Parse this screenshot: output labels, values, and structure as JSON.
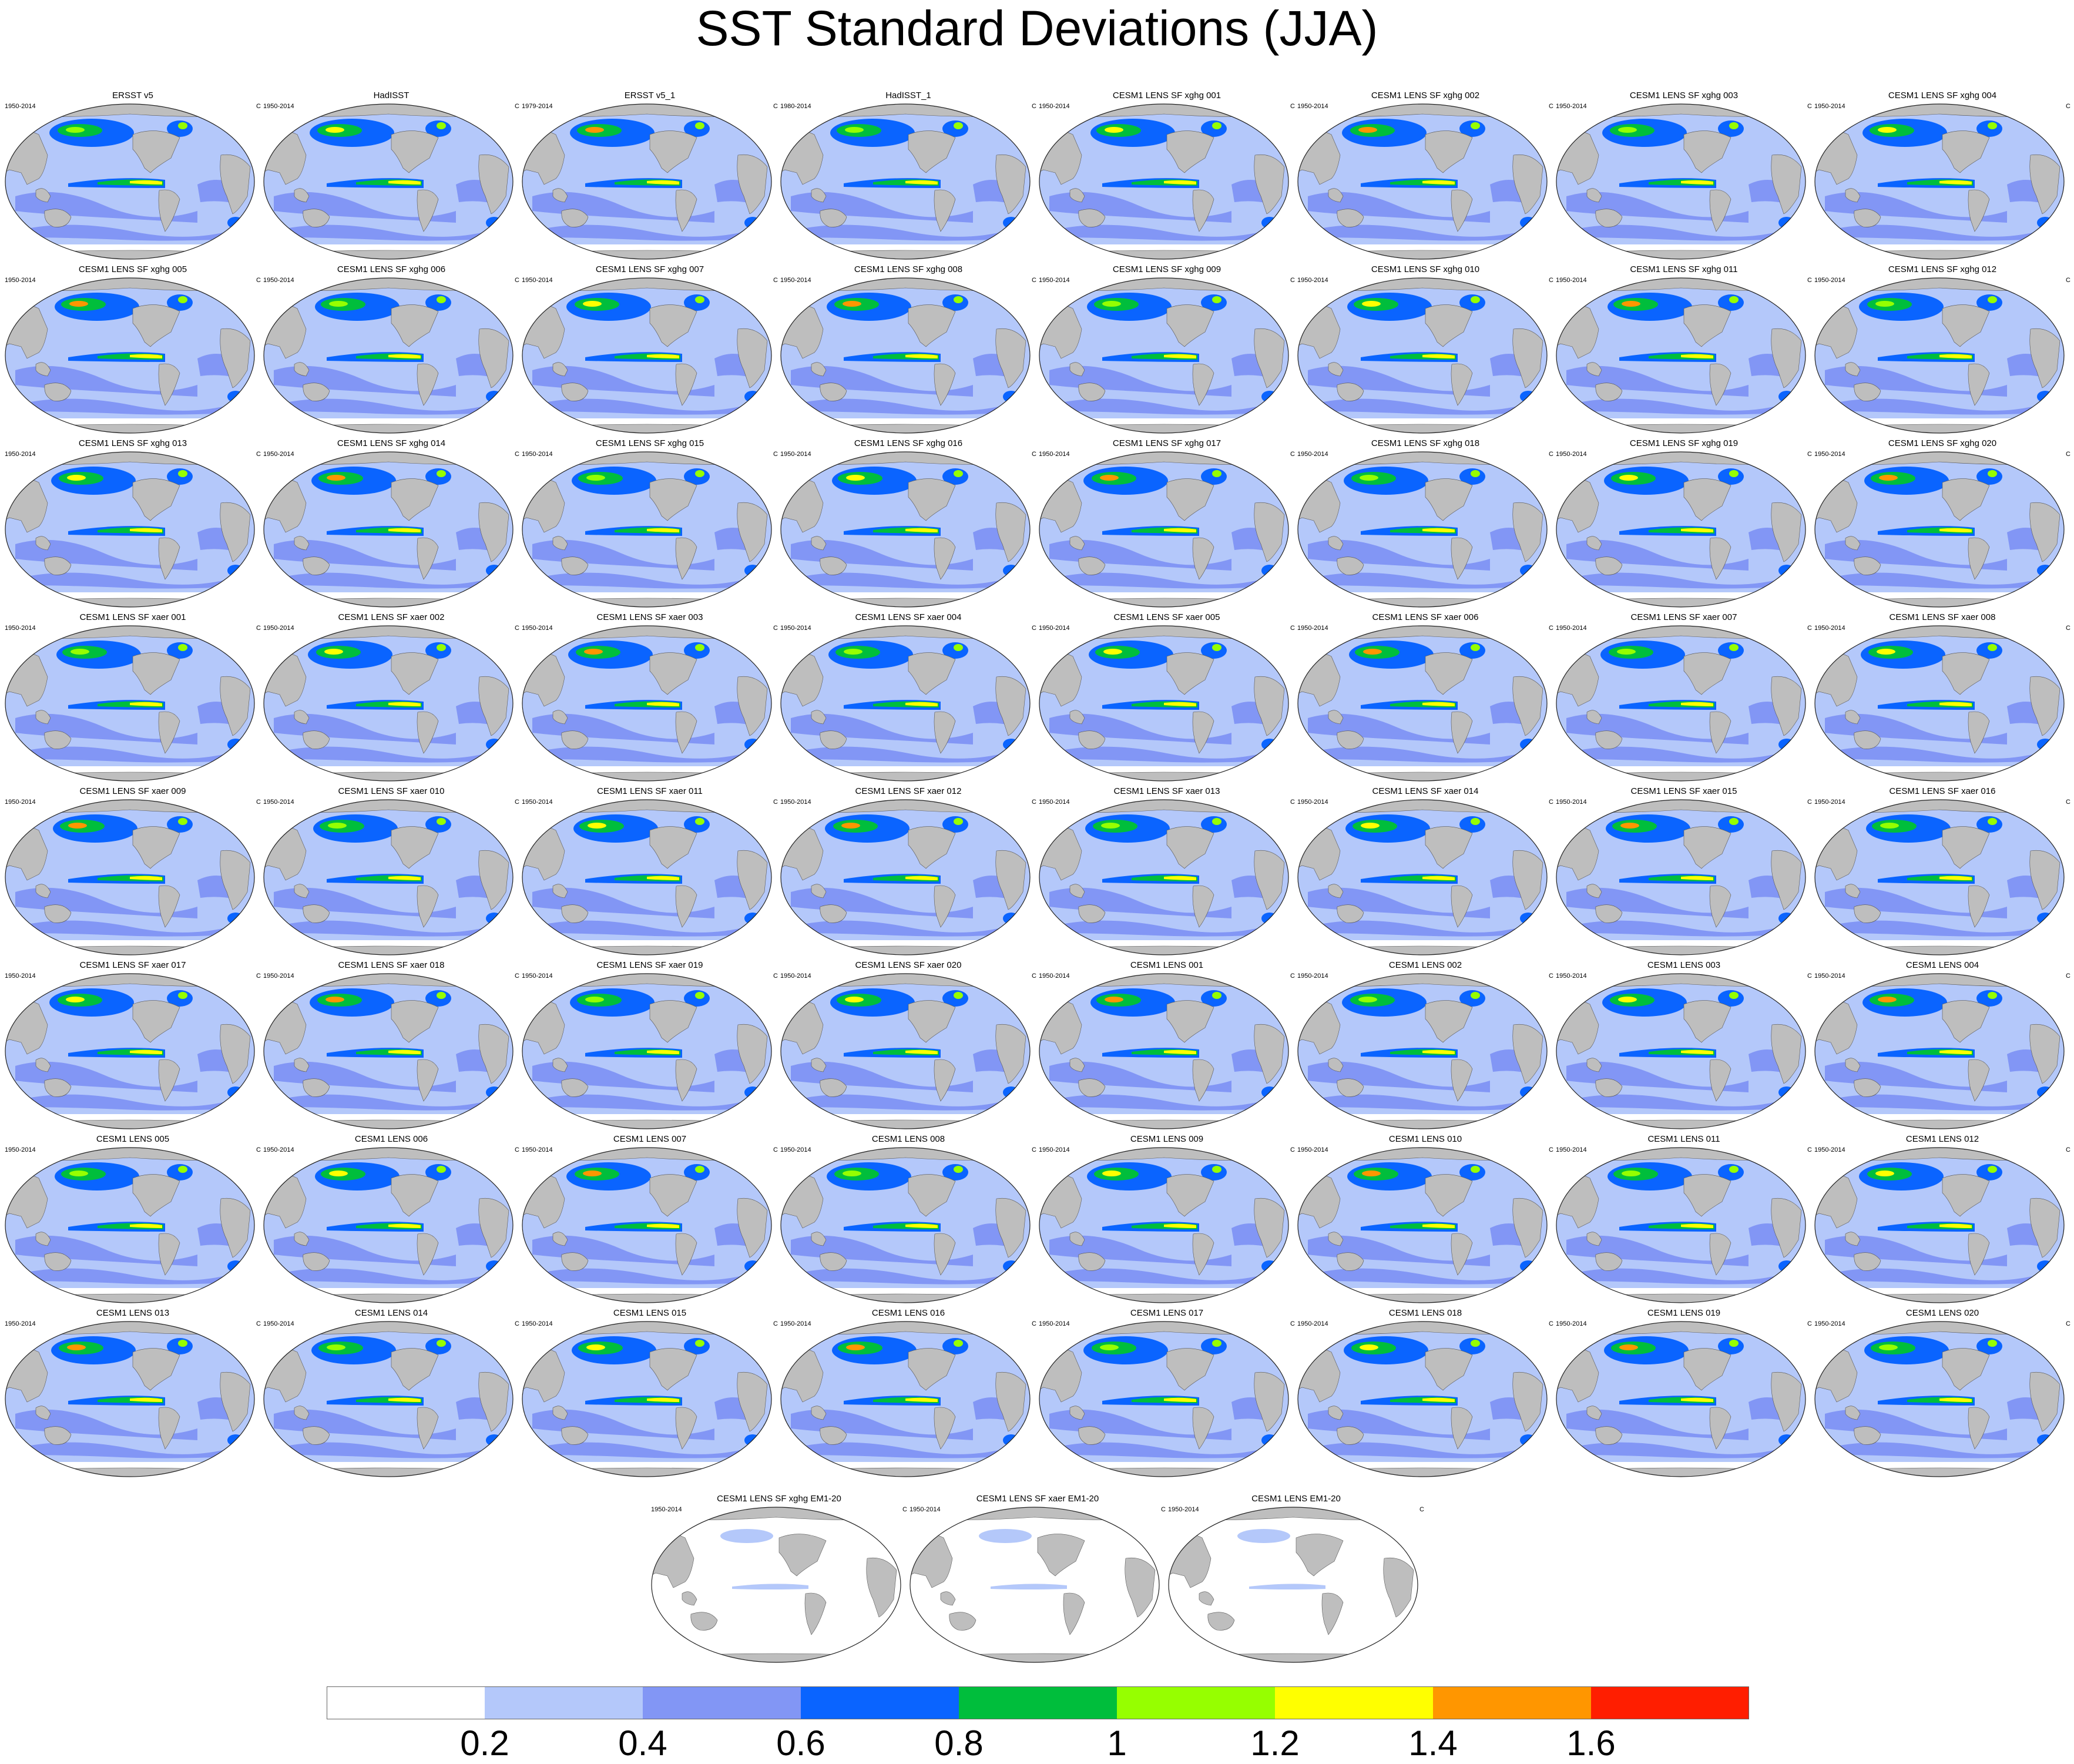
{
  "title": "SST Standard Deviations (JJA)",
  "panels": [
    {
      "title": "ERSST v5",
      "years": "1950-2014",
      "unit": "C"
    },
    {
      "title": "HadISST",
      "years": "1950-2014",
      "unit": "C"
    },
    {
      "title": "ERSST v5_1",
      "years": "1979-2014",
      "unit": "C"
    },
    {
      "title": "HadISST_1",
      "years": "1980-2014",
      "unit": "C"
    },
    {
      "title": "CESM1 LENS SF xghg 001",
      "years": "1950-2014",
      "unit": "C"
    },
    {
      "title": "CESM1 LENS SF xghg 002",
      "years": "1950-2014",
      "unit": "C"
    },
    {
      "title": "CESM1 LENS SF xghg 003",
      "years": "1950-2014",
      "unit": "C"
    },
    {
      "title": "CESM1 LENS SF xghg 004",
      "years": "1950-2014",
      "unit": "C"
    },
    {
      "title": "CESM1 LENS SF xghg 005",
      "years": "1950-2014",
      "unit": "C"
    },
    {
      "title": "CESM1 LENS SF xghg 006",
      "years": "1950-2014",
      "unit": "C"
    },
    {
      "title": "CESM1 LENS SF xghg 007",
      "years": "1950-2014",
      "unit": "C"
    },
    {
      "title": "CESM1 LENS SF xghg 008",
      "years": "1950-2014",
      "unit": "C"
    },
    {
      "title": "CESM1 LENS SF xghg 009",
      "years": "1950-2014",
      "unit": "C"
    },
    {
      "title": "CESM1 LENS SF xghg 010",
      "years": "1950-2014",
      "unit": "C"
    },
    {
      "title": "CESM1 LENS SF xghg 011",
      "years": "1950-2014",
      "unit": "C"
    },
    {
      "title": "CESM1 LENS SF xghg 012",
      "years": "1950-2014",
      "unit": "C"
    },
    {
      "title": "CESM1 LENS SF xghg 013",
      "years": "1950-2014",
      "unit": "C"
    },
    {
      "title": "CESM1 LENS SF xghg 014",
      "years": "1950-2014",
      "unit": "C"
    },
    {
      "title": "CESM1 LENS SF xghg 015",
      "years": "1950-2014",
      "unit": "C"
    },
    {
      "title": "CESM1 LENS SF xghg 016",
      "years": "1950-2014",
      "unit": "C"
    },
    {
      "title": "CESM1 LENS SF xghg 017",
      "years": "1950-2014",
      "unit": "C"
    },
    {
      "title": "CESM1 LENS SF xghg 018",
      "years": "1950-2014",
      "unit": "C"
    },
    {
      "title": "CESM1 LENS SF xghg 019",
      "years": "1950-2014",
      "unit": "C"
    },
    {
      "title": "CESM1 LENS SF xghg 020",
      "years": "1950-2014",
      "unit": "C"
    },
    {
      "title": "CESM1 LENS SF xaer 001",
      "years": "1950-2014",
      "unit": "C"
    },
    {
      "title": "CESM1 LENS SF xaer 002",
      "years": "1950-2014",
      "unit": "C"
    },
    {
      "title": "CESM1 LENS SF xaer 003",
      "years": "1950-2014",
      "unit": "C"
    },
    {
      "title": "CESM1 LENS SF xaer 004",
      "years": "1950-2014",
      "unit": "C"
    },
    {
      "title": "CESM1 LENS SF xaer 005",
      "years": "1950-2014",
      "unit": "C"
    },
    {
      "title": "CESM1 LENS SF xaer 006",
      "years": "1950-2014",
      "unit": "C"
    },
    {
      "title": "CESM1 LENS SF xaer 007",
      "years": "1950-2014",
      "unit": "C"
    },
    {
      "title": "CESM1 LENS SF xaer 008",
      "years": "1950-2014",
      "unit": "C"
    },
    {
      "title": "CESM1 LENS SF xaer 009",
      "years": "1950-2014",
      "unit": "C"
    },
    {
      "title": "CESM1 LENS SF xaer 010",
      "years": "1950-2014",
      "unit": "C"
    },
    {
      "title": "CESM1 LENS SF xaer 011",
      "years": "1950-2014",
      "unit": "C"
    },
    {
      "title": "CESM1 LENS SF xaer 012",
      "years": "1950-2014",
      "unit": "C"
    },
    {
      "title": "CESM1 LENS SF xaer 013",
      "years": "1950-2014",
      "unit": "C"
    },
    {
      "title": "CESM1 LENS SF xaer 014",
      "years": "1950-2014",
      "unit": "C"
    },
    {
      "title": "CESM1 LENS SF xaer 015",
      "years": "1950-2014",
      "unit": "C"
    },
    {
      "title": "CESM1 LENS SF xaer 016",
      "years": "1950-2014",
      "unit": "C"
    },
    {
      "title": "CESM1 LENS SF xaer 017",
      "years": "1950-2014",
      "unit": "C"
    },
    {
      "title": "CESM1 LENS SF xaer 018",
      "years": "1950-2014",
      "unit": "C"
    },
    {
      "title": "CESM1 LENS SF xaer 019",
      "years": "1950-2014",
      "unit": "C"
    },
    {
      "title": "CESM1 LENS SF xaer 020",
      "years": "1950-2014",
      "unit": "C"
    },
    {
      "title": "CESM1 LENS 001",
      "years": "1950-2014",
      "unit": "C"
    },
    {
      "title": "CESM1 LENS 002",
      "years": "1950-2014",
      "unit": "C"
    },
    {
      "title": "CESM1 LENS 003",
      "years": "1950-2014",
      "unit": "C"
    },
    {
      "title": "CESM1 LENS 004",
      "years": "1950-2014",
      "unit": "C"
    },
    {
      "title": "CESM1 LENS 005",
      "years": "1950-2014",
      "unit": "C"
    },
    {
      "title": "CESM1 LENS 006",
      "years": "1950-2014",
      "unit": "C"
    },
    {
      "title": "CESM1 LENS 007",
      "years": "1950-2014",
      "unit": "C"
    },
    {
      "title": "CESM1 LENS 008",
      "years": "1950-2014",
      "unit": "C"
    },
    {
      "title": "CESM1 LENS 009",
      "years": "1950-2014",
      "unit": "C"
    },
    {
      "title": "CESM1 LENS 010",
      "years": "1950-2014",
      "unit": "C"
    },
    {
      "title": "CESM1 LENS 011",
      "years": "1950-2014",
      "unit": "C"
    },
    {
      "title": "CESM1 LENS 012",
      "years": "1950-2014",
      "unit": "C"
    },
    {
      "title": "CESM1 LENS 013",
      "years": "1950-2014",
      "unit": "C"
    },
    {
      "title": "CESM1 LENS 014",
      "years": "1950-2014",
      "unit": "C"
    },
    {
      "title": "CESM1 LENS 015",
      "years": "1950-2014",
      "unit": "C"
    },
    {
      "title": "CESM1 LENS 016",
      "years": "1950-2014",
      "unit": "C"
    },
    {
      "title": "CESM1 LENS 017",
      "years": "1950-2014",
      "unit": "C"
    },
    {
      "title": "CESM1 LENS 018",
      "years": "1950-2014",
      "unit": "C"
    },
    {
      "title": "CESM1 LENS 019",
      "years": "1950-2014",
      "unit": "C"
    },
    {
      "title": "CESM1 LENS 020",
      "years": "1950-2014",
      "unit": "C"
    },
    {
      "title": "CESM1 LENS SF xghg EM1-20",
      "years": "1950-2014",
      "unit": "C"
    },
    {
      "title": "CESM1 LENS SF xaer EM1-20",
      "years": "1950-2014",
      "unit": "C"
    },
    {
      "title": "CESM1 LENS EM1-20",
      "years": "1950-2014",
      "unit": "C"
    }
  ],
  "colorbar": {
    "colors": [
      "#ffffff",
      "#b4c8fa",
      "#8296f5",
      "#0a64ff",
      "#00be3c",
      "#96ff00",
      "#ffff00",
      "#ff9600",
      "#ff1e00"
    ],
    "labels": [
      "0.2",
      "0.4",
      "0.6",
      "0.8",
      "1",
      "1.2",
      "1.4",
      "1.6"
    ]
  },
  "land_color": "#bebebe"
}
